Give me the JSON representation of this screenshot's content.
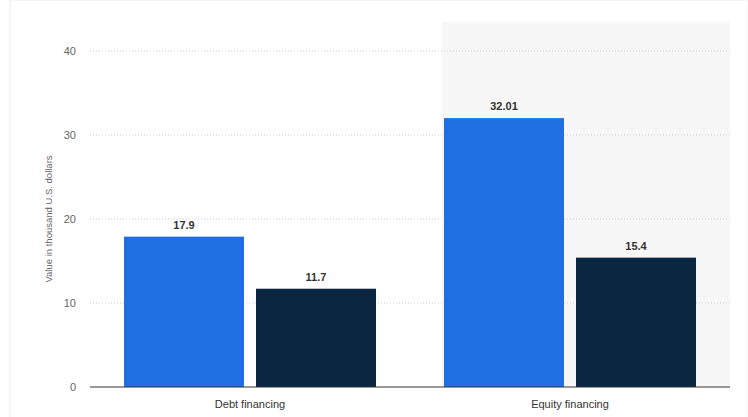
{
  "chart_data": {
    "type": "bar",
    "y_label": "Value in thousand U.S. dollars",
    "categories": [
      "Debt financing",
      "Equity financing"
    ],
    "series": [
      {
        "color": "#1f6fe3",
        "values": [
          17.9,
          32.01
        ]
      },
      {
        "color": "#0b2640",
        "values": [
          11.7,
          15.4
        ]
      }
    ],
    "ylim": [
      0,
      40
    ],
    "yticks": [
      0,
      10,
      20,
      30,
      40
    ],
    "grid": true,
    "data_labels": true
  }
}
